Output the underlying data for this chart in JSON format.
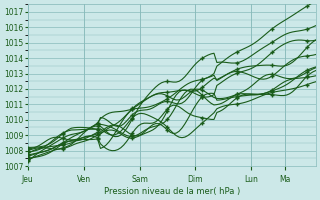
{
  "background_color": "#cce8e8",
  "grid_color": "#88bbbb",
  "line_color": "#1a5c1a",
  "marker_color": "#1a5c1a",
  "xlabel": "Pression niveau de la mer( hPa )",
  "ylim": [
    1007,
    1017.5
  ],
  "yticks": [
    1007,
    1008,
    1009,
    1010,
    1011,
    1012,
    1013,
    1014,
    1015,
    1016,
    1017
  ],
  "day_labels": [
    "Jeu",
    "Ven",
    "Sam",
    "Dim",
    "Lun",
    "Ma"
  ],
  "day_positions_norm": [
    0.0,
    0.194,
    0.388,
    0.582,
    0.776,
    0.893
  ],
  "num_points": 100,
  "figsize": [
    3.2,
    2.0
  ],
  "dpi": 100,
  "ensemble_starts": [
    1007.3,
    1007.4,
    1007.5,
    1007.6,
    1007.7,
    1007.8,
    1007.9,
    1008.0,
    1008.1,
    1008.2
  ],
  "ensemble_ends": [
    1017.2,
    1016.1,
    1015.4,
    1014.9,
    1014.4,
    1013.3,
    1012.7,
    1012.4,
    1012.3,
    1012.2
  ],
  "wiggle_seeds": [
    0,
    1,
    2,
    3,
    4,
    5,
    6,
    7,
    8,
    9
  ],
  "wiggle_scale": 0.35,
  "wiggle_mid_scale": 0.7,
  "marker_every": 12,
  "linewidth": 0.8
}
